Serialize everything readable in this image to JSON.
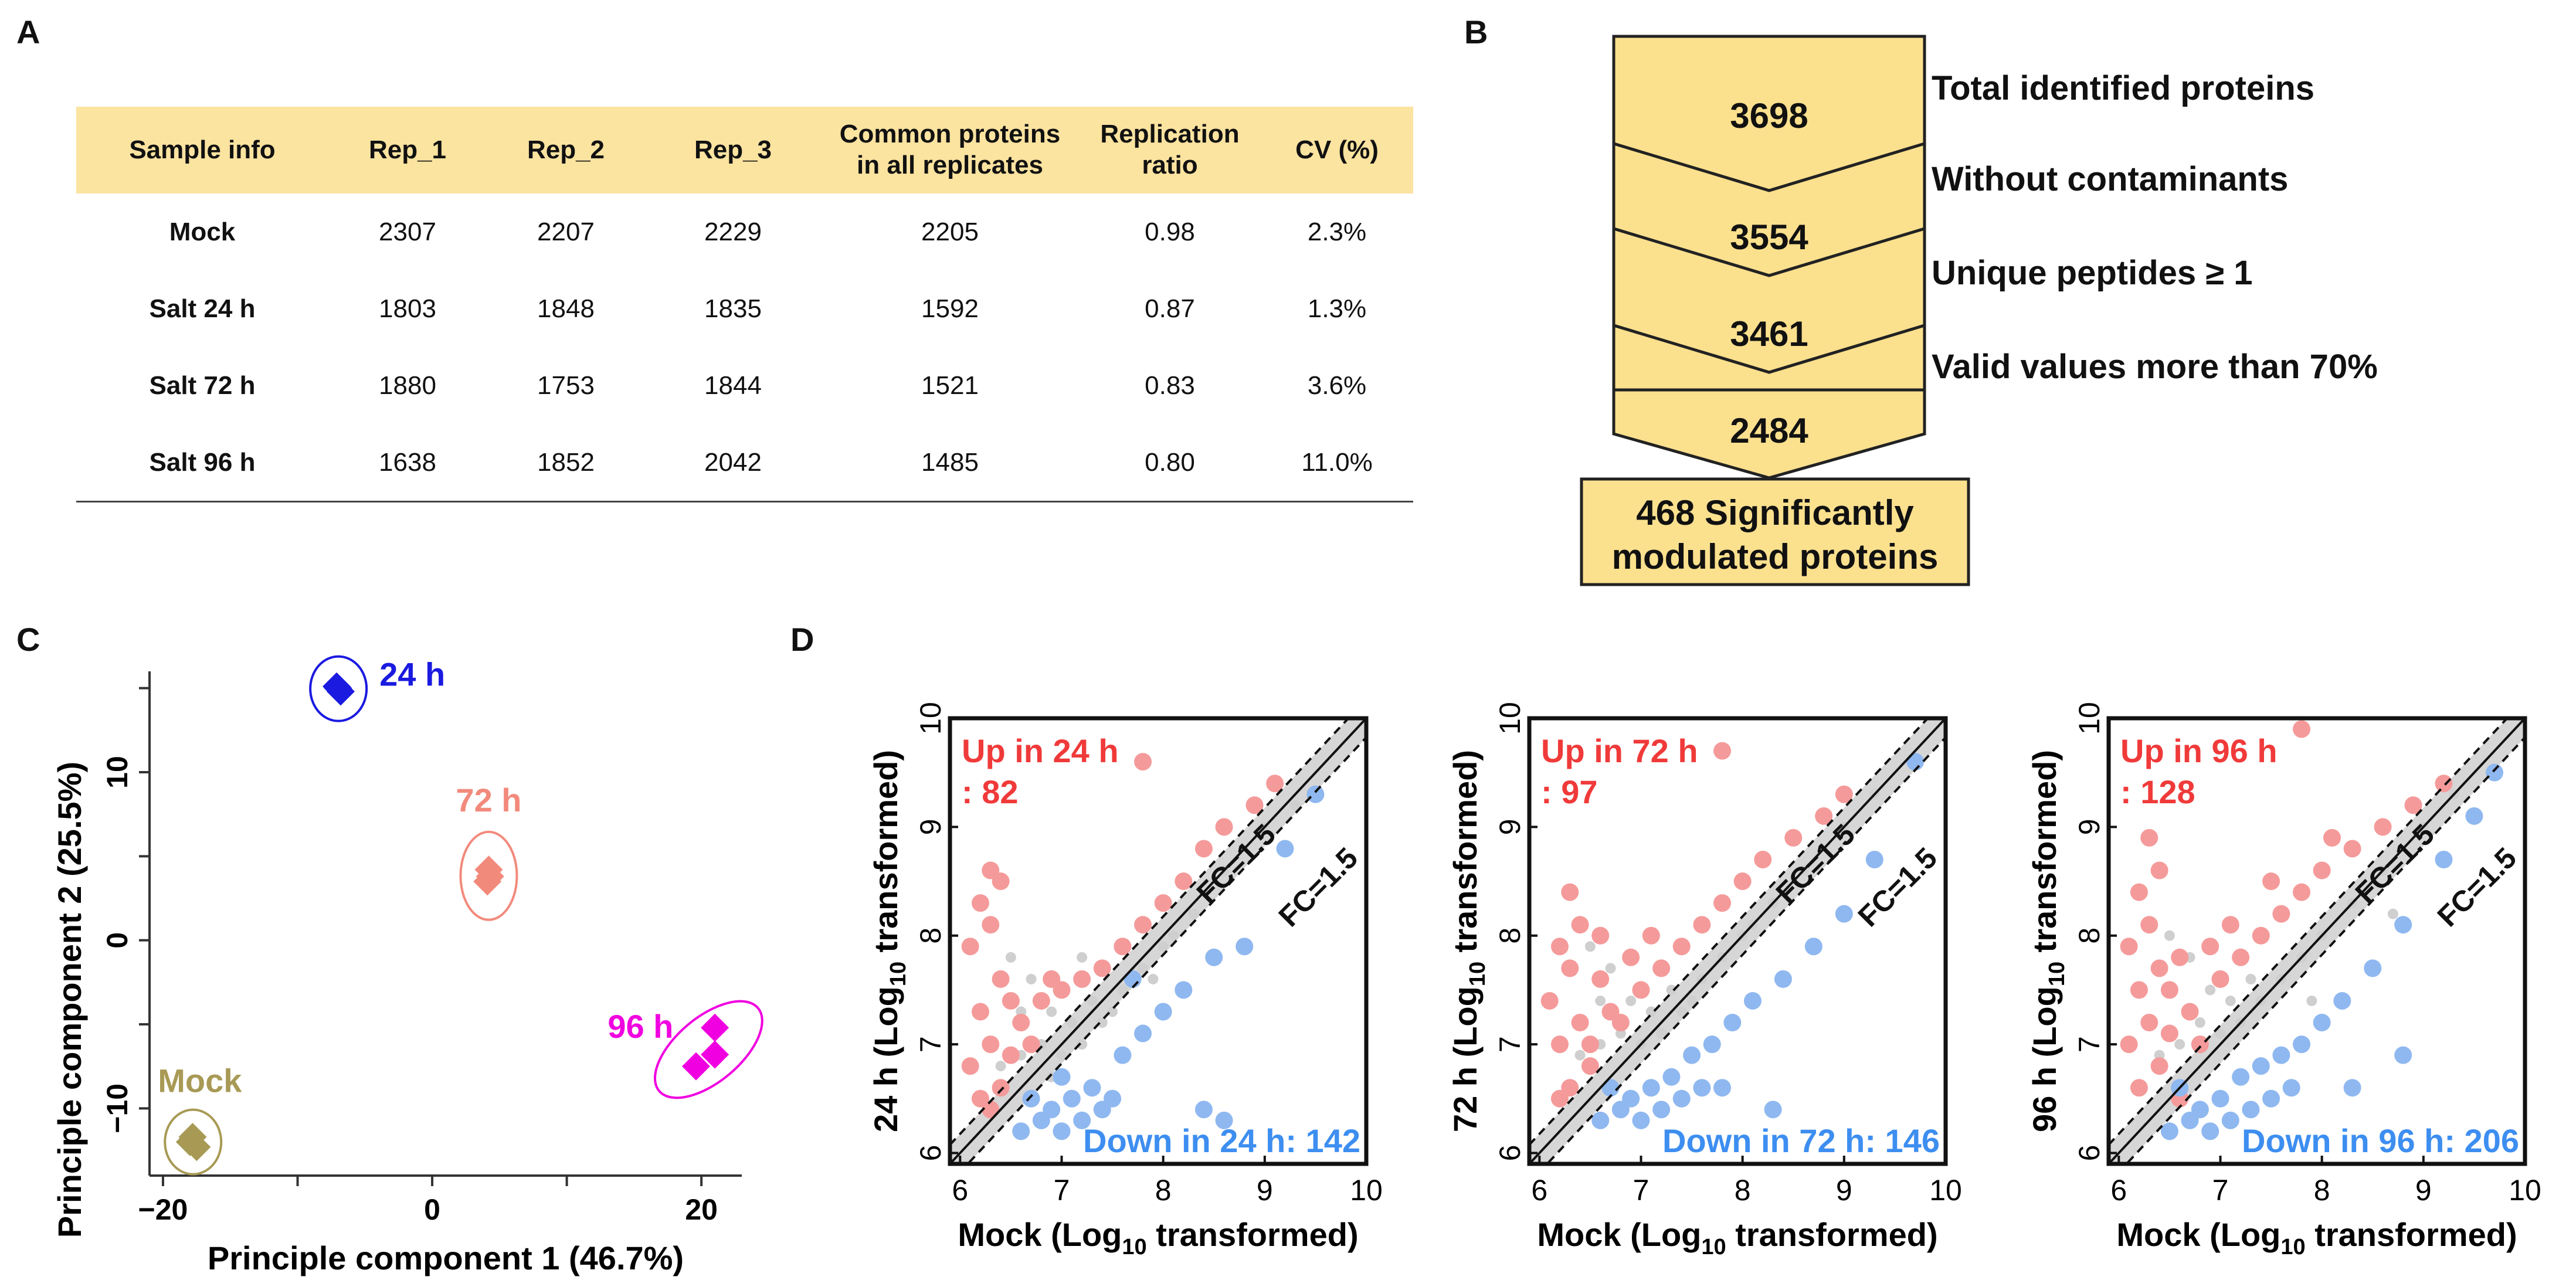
{
  "panels": {
    "a": "A",
    "b": "B",
    "c": "C",
    "d": "D"
  },
  "table": {
    "headers": [
      "Sample info",
      "Rep_1",
      "Rep_2",
      "Rep_3",
      "Common proteins",
      "in all replicates",
      "Replication",
      "ratio",
      "CV (%)"
    ],
    "rows": [
      {
        "sample": "Mock",
        "rep1": "2307",
        "rep2": "2207",
        "rep3": "2229",
        "common": "2205",
        "ratio": "0.98",
        "cv": "2.3%"
      },
      {
        "sample": "Salt 24 h",
        "rep1": "1803",
        "rep2": "1848",
        "rep3": "1835",
        "common": "1592",
        "ratio": "0.87",
        "cv": "1.3%"
      },
      {
        "sample": "Salt 72 h",
        "rep1": "1880",
        "rep2": "1753",
        "rep3": "1844",
        "common": "1521",
        "ratio": "0.83",
        "cv": "3.6%"
      },
      {
        "sample": "Salt 96 h",
        "rep1": "1638",
        "rep2": "1852",
        "rep3": "2042",
        "common": "1485",
        "ratio": "0.80",
        "cv": "11.0%"
      }
    ]
  },
  "funnel": {
    "counts": [
      "3698",
      "3554",
      "3461",
      "2484"
    ],
    "steps": [
      "Total identified proteins",
      "Without contaminants",
      "Unique peptides ≥ 1",
      "Valid values more than 70%"
    ],
    "final_line1": "468 Significantly",
    "final_line2": "modulated proteins",
    "fill_color": "#fbe08e"
  },
  "chart_data": [
    {
      "type": "scatter",
      "title": "",
      "xlabel": "Principle component 1 (46.7%)",
      "ylabel": "Principle component 2 (25.5%)",
      "xlim": [
        -21,
        23
      ],
      "ylim": [
        -14,
        16
      ],
      "xticks": [
        -20,
        0,
        20
      ],
      "yticks": [
        -10,
        0,
        10
      ],
      "xtick_labels": [
        "−20",
        "0",
        "20"
      ],
      "ytick_labels": [
        "−10",
        "0",
        "10"
      ],
      "series": [
        {
          "name": "Mock",
          "color": "#a89a55",
          "points": [
            [
              -18,
              -12
            ],
            [
              -17.5,
              -12.3
            ],
            [
              -17.8,
              -11.7
            ]
          ]
        },
        {
          "name": "24 h",
          "color": "#1a1ae0",
          "points": [
            [
              -7,
              15
            ],
            [
              -6.8,
              14.8
            ],
            [
              -7.1,
              15.1
            ]
          ]
        },
        {
          "name": "72 h",
          "color": "#f28a7c",
          "points": [
            [
              4.2,
              4.2
            ],
            [
              4.1,
              3.5
            ],
            [
              4.3,
              3.8
            ]
          ]
        },
        {
          "name": "96 h",
          "color": "#f000e0",
          "points": [
            [
              21,
              -5.2
            ],
            [
              21,
              -6.8
            ],
            [
              19.6,
              -7.5
            ]
          ]
        }
      ]
    },
    {
      "type": "scatter",
      "title": "24 h",
      "xlabel_pre": "Mock (Log",
      "xlabel_sub": "10",
      "xlabel_post": " transformed)",
      "ylabel_pre": "24 h (Log",
      "ylabel_sub": "10",
      "ylabel_post": " transformed)",
      "xlim": [
        5.9,
        10
      ],
      "ylim": [
        5.9,
        10
      ],
      "ticks": [
        "6",
        "7",
        "8",
        "9",
        "10"
      ],
      "up_line1": "Up in 24 h",
      "up_line2": ": 82",
      "down": "Down in 24 h: 142",
      "fc_upper": "FC=1.5",
      "fc_lower": "FC=1.5",
      "up_points": [
        [
          6.3,
          8.6
        ],
        [
          6.4,
          8.5
        ],
        [
          6.2,
          8.3
        ],
        [
          6.3,
          8.1
        ],
        [
          6.1,
          7.9
        ],
        [
          6.4,
          7.6
        ],
        [
          6.2,
          7.3
        ],
        [
          6.3,
          7.0
        ],
        [
          6.1,
          6.8
        ],
        [
          6.4,
          6.6
        ],
        [
          6.2,
          6.5
        ],
        [
          6.5,
          7.4
        ],
        [
          6.6,
          7.2
        ],
        [
          6.3,
          6.4
        ],
        [
          6.5,
          6.9
        ],
        [
          7.2,
          7.6
        ],
        [
          7.4,
          7.7
        ],
        [
          7.6,
          7.9
        ],
        [
          7.8,
          8.1
        ],
        [
          8.0,
          8.3
        ],
        [
          8.2,
          8.5
        ],
        [
          8.4,
          8.8
        ],
        [
          8.6,
          9.0
        ],
        [
          8.9,
          9.2
        ],
        [
          9.1,
          9.4
        ],
        [
          7.8,
          9.6
        ],
        [
          7.0,
          7.5
        ],
        [
          6.8,
          7.4
        ],
        [
          6.9,
          7.6
        ],
        [
          6.7,
          7.0
        ]
      ],
      "down_points": [
        [
          6.6,
          6.2
        ],
        [
          6.8,
          6.3
        ],
        [
          7.0,
          6.2
        ],
        [
          7.2,
          6.3
        ],
        [
          7.4,
          6.4
        ],
        [
          7.5,
          6.5
        ],
        [
          7.3,
          6.6
        ],
        [
          7.1,
          6.5
        ],
        [
          6.9,
          6.4
        ],
        [
          7.6,
          6.9
        ],
        [
          7.8,
          7.1
        ],
        [
          8.0,
          7.3
        ],
        [
          8.2,
          7.5
        ],
        [
          8.5,
          7.8
        ],
        [
          8.8,
          7.9
        ],
        [
          9.2,
          8.8
        ],
        [
          9.5,
          9.3
        ],
        [
          8.4,
          6.4
        ],
        [
          8.6,
          6.3
        ],
        [
          7.0,
          6.7
        ],
        [
          7.7,
          7.6
        ],
        [
          6.7,
          6.5
        ]
      ],
      "gray_points": [
        [
          6.5,
          7.8
        ],
        [
          6.7,
          7.6
        ],
        [
          6.9,
          7.3
        ],
        [
          7.1,
          7.2
        ],
        [
          7.3,
          7.4
        ],
        [
          6.8,
          7.0
        ],
        [
          7.0,
          6.9
        ],
        [
          7.2,
          7.0
        ],
        [
          7.4,
          7.2
        ],
        [
          7.6,
          7.5
        ],
        [
          7.8,
          7.7
        ],
        [
          8.0,
          7.9
        ],
        [
          8.3,
          8.2
        ],
        [
          8.6,
          8.6
        ],
        [
          9.0,
          9.0
        ],
        [
          6.6,
          6.9
        ],
        [
          6.4,
          6.8
        ],
        [
          6.9,
          6.7
        ],
        [
          7.5,
          7.3
        ],
        [
          8.1,
          8.0
        ],
        [
          6.6,
          7.3
        ],
        [
          7.2,
          7.8
        ],
        [
          7.9,
          7.6
        ],
        [
          9.3,
          9.2
        ]
      ]
    },
    {
      "type": "scatter",
      "title": "72 h",
      "xlabel_pre": "Mock (Log",
      "xlabel_sub": "10",
      "xlabel_post": " transformed)",
      "ylabel_pre": "72 h (Log",
      "ylabel_sub": "10",
      "ylabel_post": " transformed)",
      "xlim": [
        5.9,
        10
      ],
      "ylim": [
        5.9,
        10
      ],
      "ticks": [
        "6",
        "7",
        "8",
        "9",
        "10"
      ],
      "up_line1": "Up in 72 h",
      "up_line2": ": 97",
      "down": "Down in 72 h: 146",
      "fc_upper": "FC=1.5",
      "fc_lower": "FC=1.5",
      "up_points": [
        [
          6.3,
          8.4
        ],
        [
          6.4,
          8.1
        ],
        [
          6.2,
          7.9
        ],
        [
          6.3,
          7.7
        ],
        [
          6.1,
          7.4
        ],
        [
          6.4,
          7.2
        ],
        [
          6.2,
          7.0
        ],
        [
          6.5,
          6.8
        ],
        [
          6.3,
          6.6
        ],
        [
          6.6,
          7.6
        ],
        [
          6.7,
          7.3
        ],
        [
          6.5,
          7.0
        ],
        [
          7.0,
          7.5
        ],
        [
          7.2,
          7.7
        ],
        [
          7.4,
          7.9
        ],
        [
          7.6,
          8.1
        ],
        [
          7.8,
          8.3
        ],
        [
          8.0,
          8.5
        ],
        [
          8.2,
          8.7
        ],
        [
          8.5,
          8.9
        ],
        [
          8.8,
          9.1
        ],
        [
          9.0,
          9.3
        ],
        [
          7.8,
          9.7
        ],
        [
          6.9,
          7.8
        ],
        [
          6.8,
          7.2
        ],
        [
          6.2,
          6.5
        ],
        [
          7.1,
          8.0
        ],
        [
          6.6,
          8.0
        ]
      ],
      "down_points": [
        [
          6.6,
          6.3
        ],
        [
          6.8,
          6.4
        ],
        [
          7.0,
          6.3
        ],
        [
          7.2,
          6.4
        ],
        [
          7.4,
          6.5
        ],
        [
          7.6,
          6.6
        ],
        [
          7.3,
          6.7
        ],
        [
          7.1,
          6.6
        ],
        [
          6.9,
          6.5
        ],
        [
          7.7,
          7.0
        ],
        [
          7.9,
          7.2
        ],
        [
          8.1,
          7.4
        ],
        [
          8.4,
          7.6
        ],
        [
          8.7,
          7.9
        ],
        [
          9.0,
          8.2
        ],
        [
          9.3,
          8.7
        ],
        [
          9.7,
          9.6
        ],
        [
          8.3,
          6.4
        ],
        [
          7.5,
          6.9
        ],
        [
          7.8,
          6.6
        ],
        [
          6.7,
          6.6
        ]
      ],
      "gray_points": [
        [
          6.5,
          7.9
        ],
        [
          6.7,
          7.7
        ],
        [
          6.9,
          7.4
        ],
        [
          7.1,
          7.3
        ],
        [
          7.3,
          7.5
        ],
        [
          6.8,
          7.1
        ],
        [
          7.0,
          7.0
        ],
        [
          7.2,
          7.1
        ],
        [
          7.4,
          7.3
        ],
        [
          7.6,
          7.6
        ],
        [
          7.8,
          7.8
        ],
        [
          8.0,
          8.0
        ],
        [
          8.3,
          8.3
        ],
        [
          8.6,
          8.6
        ],
        [
          9.0,
          9.0
        ],
        [
          6.6,
          7.0
        ],
        [
          6.4,
          6.9
        ],
        [
          7.5,
          7.4
        ],
        [
          8.1,
          8.1
        ],
        [
          9.3,
          9.3
        ],
        [
          6.6,
          7.4
        ]
      ]
    },
    {
      "type": "scatter",
      "title": "96 h",
      "xlabel_pre": "Mock (Log",
      "xlabel_sub": "10",
      "xlabel_post": " transformed)",
      "ylabel_pre": "96 h (Log",
      "ylabel_sub": "10",
      "ylabel_post": " transformed)",
      "xlim": [
        5.9,
        10
      ],
      "ylim": [
        5.9,
        10
      ],
      "ticks": [
        "6",
        "7",
        "8",
        "9",
        "10"
      ],
      "up_line1": "Up in 96 h",
      "up_line2": ": 128",
      "down": "Down in 96 h: 206",
      "fc_upper": "FC=1.5",
      "fc_lower": "FC=1.5",
      "up_points": [
        [
          6.3,
          8.9
        ],
        [
          6.4,
          8.6
        ],
        [
          6.2,
          8.4
        ],
        [
          6.3,
          8.1
        ],
        [
          6.1,
          7.9
        ],
        [
          6.4,
          7.7
        ],
        [
          6.2,
          7.5
        ],
        [
          6.3,
          7.2
        ],
        [
          6.1,
          7.0
        ],
        [
          6.4,
          6.8
        ],
        [
          6.2,
          6.6
        ],
        [
          6.5,
          7.5
        ],
        [
          6.6,
          7.8
        ],
        [
          6.5,
          7.1
        ],
        [
          6.7,
          7.3
        ],
        [
          7.0,
          7.6
        ],
        [
          7.2,
          7.8
        ],
        [
          7.4,
          8.0
        ],
        [
          7.6,
          8.2
        ],
        [
          7.8,
          8.4
        ],
        [
          8.0,
          8.6
        ],
        [
          8.3,
          8.8
        ],
        [
          8.6,
          9.0
        ],
        [
          8.9,
          9.2
        ],
        [
          9.2,
          9.4
        ],
        [
          7.8,
          9.9
        ],
        [
          6.9,
          7.9
        ],
        [
          7.1,
          8.1
        ],
        [
          6.8,
          7.0
        ],
        [
          6.6,
          6.5
        ],
        [
          7.5,
          8.5
        ],
        [
          8.1,
          8.9
        ]
      ],
      "down_points": [
        [
          6.5,
          6.2
        ],
        [
          6.7,
          6.3
        ],
        [
          6.9,
          6.2
        ],
        [
          7.1,
          6.3
        ],
        [
          7.3,
          6.4
        ],
        [
          7.5,
          6.5
        ],
        [
          7.7,
          6.6
        ],
        [
          7.2,
          6.7
        ],
        [
          7.0,
          6.5
        ],
        [
          6.8,
          6.4
        ],
        [
          7.8,
          7.0
        ],
        [
          8.0,
          7.2
        ],
        [
          8.2,
          7.4
        ],
        [
          8.5,
          7.7
        ],
        [
          8.8,
          8.1
        ],
        [
          9.2,
          8.7
        ],
        [
          9.5,
          9.1
        ],
        [
          9.7,
          9.5
        ],
        [
          8.8,
          6.9
        ],
        [
          8.3,
          6.6
        ],
        [
          7.6,
          6.9
        ],
        [
          7.4,
          6.8
        ],
        [
          6.6,
          6.6
        ]
      ],
      "gray_points": [
        [
          6.5,
          8.0
        ],
        [
          6.7,
          7.8
        ],
        [
          6.9,
          7.5
        ],
        [
          7.1,
          7.4
        ],
        [
          7.3,
          7.6
        ],
        [
          6.8,
          7.2
        ],
        [
          7.0,
          7.1
        ],
        [
          7.2,
          7.2
        ],
        [
          7.4,
          7.4
        ],
        [
          7.6,
          7.6
        ],
        [
          7.8,
          7.8
        ],
        [
          8.0,
          8.0
        ],
        [
          8.3,
          8.3
        ],
        [
          8.6,
          8.6
        ],
        [
          9.0,
          9.0
        ],
        [
          6.6,
          7.0
        ],
        [
          6.4,
          6.9
        ],
        [
          9.3,
          9.3
        ],
        [
          7.9,
          7.4
        ],
        [
          8.7,
          8.2
        ]
      ]
    }
  ],
  "colors": {
    "up": "#f59a9a",
    "down": "#8fb8f0",
    "gray": "#cfcfcf",
    "up_text": "#f03a3a",
    "down_text": "#3d8ef0"
  }
}
